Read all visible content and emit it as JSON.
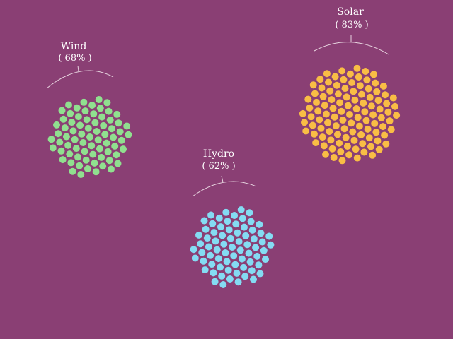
{
  "chart_data": {
    "type": "scatter",
    "title": "",
    "series": [
      {
        "name": "Wind",
        "value": 68,
        "label": "Wind",
        "value_label": "( 68% )",
        "color": "#90e08f"
      },
      {
        "name": "Hydro",
        "value": 62,
        "label": "Hydro",
        "value_label": "( 62% )",
        "color": "#84dcf3"
      },
      {
        "name": "Solar",
        "value": 83,
        "label": "Solar",
        "value_label": "( 83% )",
        "color": "#f9bd45"
      }
    ]
  }
}
